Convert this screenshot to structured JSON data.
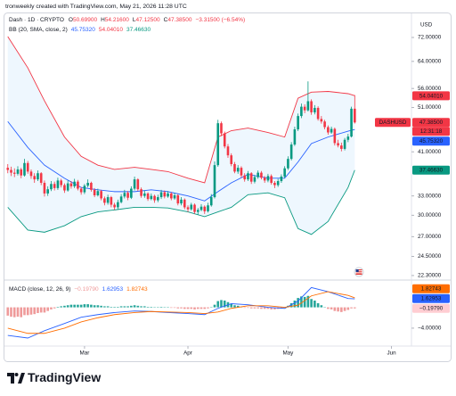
{
  "header": {
    "attribution": "tronweekly created with TradingView.com, May 21, 2026 11:28 UTC"
  },
  "footer": {
    "brand": "TradingView"
  },
  "chart_data": [
    {
      "type": "candlestick",
      "legend": {
        "symbol": "Dash · 1D · CRYPTO",
        "value_color": "#f23645",
        "ohlc": [
          {
            "key": "O",
            "value": "50.69900"
          },
          {
            "key": "H",
            "value": "54.21600"
          },
          {
            "key": "L",
            "value": "47.12500"
          },
          {
            "key": "C",
            "value": "47.38500"
          }
        ],
        "change": "−3.31500 (−6.54%)"
      },
      "indicator_legend": {
        "name": "BB (20, SMA, close, 2)",
        "values": [
          {
            "text": "45.75320",
            "color": "#2962ff"
          },
          {
            "text": "54.04010",
            "color": "#f23645"
          },
          {
            "text": "37.46630",
            "color": "#089981"
          }
        ]
      },
      "currency": "USD",
      "log_scale": true,
      "grid": false,
      "up_color": "#089981",
      "down_color": "#f23645",
      "xlim": [
        -1,
        121
      ],
      "ylim": [
        22,
        80
      ],
      "yticks": [
        {
          "value": 72,
          "label": "72.00000"
        },
        {
          "value": 64,
          "label": "64.00000"
        },
        {
          "value": 56,
          "label": "56.00000"
        },
        {
          "value": 51,
          "label": "51.00000"
        },
        {
          "value": 41,
          "label": "41.00000"
        },
        {
          "value": 33,
          "label": "33.00000"
        },
        {
          "value": 30,
          "label": "30.00000"
        },
        {
          "value": 27,
          "label": "27.00000"
        },
        {
          "value": 24.5,
          "label": "24.50000"
        },
        {
          "value": 22.3,
          "label": "22.30000"
        }
      ],
      "ohlc": [
        [
          37.9,
          38.6,
          36.9,
          37.5
        ],
        [
          37.5,
          38.1,
          36.4,
          37.0
        ],
        [
          37.0,
          37.8,
          36.2,
          36.8
        ],
        [
          36.8,
          38.2,
          36.5,
          37.6
        ],
        [
          37.6,
          37.9,
          36.0,
          36.5
        ],
        [
          36.5,
          39.6,
          36.3,
          38.8
        ],
        [
          38.8,
          39.2,
          36.8,
          37.2
        ],
        [
          37.2,
          37.6,
          35.9,
          36.4
        ],
        [
          36.4,
          36.9,
          35.2,
          35.8
        ],
        [
          35.8,
          37.4,
          35.5,
          36.9
        ],
        [
          36.9,
          37.1,
          34.8,
          35.2
        ],
        [
          35.2,
          35.6,
          32.9,
          33.4
        ],
        [
          33.4,
          34.6,
          33.0,
          34.1
        ],
        [
          34.1,
          35.5,
          33.8,
          35.0
        ],
        [
          35.0,
          35.4,
          33.9,
          34.3
        ],
        [
          34.3,
          36.1,
          34.0,
          35.6
        ],
        [
          35.6,
          35.9,
          34.4,
          34.8
        ],
        [
          34.8,
          35.1,
          33.5,
          33.9
        ],
        [
          33.9,
          35.6,
          33.7,
          35.1
        ],
        [
          35.1,
          35.5,
          34.2,
          34.6
        ],
        [
          34.6,
          35.9,
          34.3,
          35.4
        ],
        [
          35.4,
          35.7,
          33.9,
          34.2
        ],
        [
          34.2,
          34.5,
          33.2,
          33.6
        ],
        [
          33.6,
          35.0,
          33.3,
          34.7
        ],
        [
          34.7,
          35.8,
          34.4,
          35.2
        ],
        [
          35.2,
          35.4,
          33.7,
          34.0
        ],
        [
          34.0,
          34.3,
          32.8,
          33.1
        ],
        [
          33.1,
          34.2,
          32.9,
          33.8
        ],
        [
          33.8,
          34.0,
          32.3,
          32.6
        ],
        [
          32.6,
          32.9,
          31.5,
          31.9
        ],
        [
          31.9,
          33.2,
          31.6,
          32.8
        ],
        [
          32.8,
          33.0,
          31.2,
          31.6
        ],
        [
          31.6,
          31.9,
          30.8,
          31.2
        ],
        [
          31.2,
          32.4,
          30.9,
          32.0
        ],
        [
          32.0,
          33.3,
          31.8,
          32.9
        ],
        [
          32.9,
          34.0,
          32.6,
          33.5
        ],
        [
          33.5,
          33.8,
          32.3,
          32.7
        ],
        [
          32.7,
          34.6,
          32.5,
          34.2
        ],
        [
          34.2,
          36.3,
          33.9,
          35.8
        ],
        [
          35.8,
          36.0,
          33.8,
          34.1
        ],
        [
          34.1,
          34.4,
          32.7,
          33.0
        ],
        [
          33.0,
          33.9,
          32.7,
          33.4
        ],
        [
          33.4,
          33.6,
          32.2,
          32.5
        ],
        [
          32.5,
          33.4,
          32.3,
          33.0
        ],
        [
          33.0,
          33.2,
          31.9,
          32.3
        ],
        [
          32.3,
          33.2,
          32.0,
          32.8
        ],
        [
          32.8,
          34.0,
          32.5,
          33.6
        ],
        [
          33.6,
          33.9,
          32.6,
          32.9
        ],
        [
          32.9,
          33.8,
          32.7,
          33.4
        ],
        [
          33.4,
          33.6,
          32.3,
          32.6
        ],
        [
          32.6,
          33.5,
          32.4,
          33.1
        ],
        [
          33.1,
          33.3,
          31.5,
          31.8
        ],
        [
          31.8,
          32.8,
          31.5,
          32.4
        ],
        [
          32.4,
          32.6,
          30.9,
          31.2
        ],
        [
          31.2,
          31.5,
          30.5,
          30.9
        ],
        [
          30.9,
          31.9,
          30.7,
          31.6
        ],
        [
          31.6,
          31.8,
          30.2,
          30.5
        ],
        [
          30.5,
          31.1,
          30.1,
          30.8
        ],
        [
          30.8,
          31.7,
          30.6,
          31.3
        ],
        [
          31.3,
          31.5,
          30.2,
          30.6
        ],
        [
          30.6,
          31.9,
          30.4,
          31.5
        ],
        [
          31.5,
          33.3,
          31.3,
          32.8
        ],
        [
          32.8,
          39.1,
          32.6,
          38.4
        ],
        [
          38.4,
          48.0,
          38.1,
          47.2
        ],
        [
          47.2,
          47.6,
          44.3,
          44.9
        ],
        [
          44.9,
          45.3,
          41.7,
          42.1
        ],
        [
          42.1,
          42.6,
          39.8,
          40.3
        ],
        [
          40.3,
          40.7,
          38.2,
          38.6
        ],
        [
          38.6,
          39.0,
          36.9,
          37.2
        ],
        [
          37.2,
          38.4,
          36.8,
          37.9
        ],
        [
          37.9,
          38.2,
          36.1,
          36.5
        ],
        [
          36.5,
          36.9,
          35.4,
          35.8
        ],
        [
          35.8,
          37.3,
          35.5,
          36.9
        ],
        [
          36.9,
          37.1,
          35.0,
          35.4
        ],
        [
          35.4,
          36.6,
          35.1,
          36.2
        ],
        [
          36.2,
          37.4,
          35.9,
          37.0
        ],
        [
          37.0,
          37.3,
          35.8,
          36.1
        ],
        [
          36.1,
          36.4,
          35.2,
          35.6
        ],
        [
          35.6,
          36.8,
          35.3,
          36.4
        ],
        [
          36.4,
          36.7,
          34.9,
          35.2
        ],
        [
          35.2,
          35.5,
          34.3,
          34.8
        ],
        [
          34.8,
          35.9,
          34.5,
          35.5
        ],
        [
          35.5,
          36.7,
          35.2,
          36.3
        ],
        [
          36.3,
          38.2,
          36.0,
          37.8
        ],
        [
          37.8,
          40.1,
          37.5,
          39.6
        ],
        [
          39.6,
          43.0,
          39.3,
          42.5
        ],
        [
          42.5,
          46.4,
          42.2,
          45.8
        ],
        [
          45.8,
          49.5,
          45.4,
          48.9
        ],
        [
          48.9,
          52.0,
          48.4,
          51.2
        ],
        [
          51.2,
          51.8,
          49.6,
          50.3
        ],
        [
          50.3,
          58.0,
          50.0,
          52.6
        ],
        [
          52.6,
          53.1,
          49.2,
          49.8
        ],
        [
          49.8,
          51.6,
          49.3,
          50.9
        ],
        [
          50.9,
          51.3,
          47.8,
          48.2
        ],
        [
          48.2,
          48.9,
          47.1,
          47.6
        ],
        [
          47.6,
          48.0,
          45.8,
          46.3
        ],
        [
          46.3,
          46.7,
          44.6,
          45.1
        ],
        [
          45.1,
          46.4,
          44.8,
          45.9
        ],
        [
          45.9,
          46.2,
          42.3,
          42.8
        ],
        [
          42.8,
          43.5,
          41.9,
          42.3
        ],
        [
          42.3,
          42.9,
          41.1,
          41.6
        ],
        [
          41.6,
          43.9,
          41.3,
          43.5
        ],
        [
          43.5,
          44.8,
          43.0,
          44.2
        ],
        [
          44.2,
          51.2,
          44.0,
          50.699
        ],
        [
          50.699,
          54.216,
          47.125,
          47.385
        ]
      ],
      "line_x": [
        0,
        6,
        11,
        17,
        22,
        27,
        32,
        38,
        43,
        48,
        54,
        59,
        63,
        67,
        72,
        78,
        83,
        87,
        91,
        96,
        102,
        104
      ],
      "lines": [
        {
          "color": "#f23645",
          "values": [
            72.3,
            62.0,
            52.7,
            44.1,
            40.1,
            38.4,
            37.6,
            38.0,
            37.6,
            37.2,
            36.0,
            35.2,
            44.1,
            45.5,
            46.1,
            45.1,
            44.1,
            53.4,
            55.0,
            55.2,
            54.6,
            54.0401
          ]
        },
        {
          "color": "#2962ff",
          "values": [
            47.6,
            41.9,
            38.4,
            36.0,
            34.4,
            34.0,
            33.7,
            33.7,
            34.0,
            33.7,
            33.0,
            32.2,
            33.7,
            35.2,
            36.7,
            36.0,
            36.0,
            39.0,
            42.7,
            44.1,
            45.4,
            45.7532
          ]
        },
        {
          "color": "#089981",
          "values": [
            31.2,
            27.9,
            27.6,
            28.5,
            29.8,
            30.5,
            30.8,
            31.2,
            31.2,
            31.1,
            30.5,
            29.8,
            30.5,
            31.2,
            33.2,
            33.5,
            32.7,
            28.1,
            27.3,
            29.1,
            34.4,
            37.4663
          ]
        }
      ],
      "fill_between": [
        0,
        2
      ],
      "fill_color": "#2196f3",
      "badges": [
        {
          "value": 54.0401,
          "label": "54.04010",
          "color": "#f23645"
        },
        {
          "value": 47.385,
          "label": "47.38500",
          "color": "#f23645",
          "symbol": "DASHUSD",
          "countdown": "12:31:18"
        },
        {
          "value": 45.7532,
          "label": "45.75320",
          "color": "#2962ff"
        },
        {
          "value": 37.4663,
          "label": "37.46630",
          "color": "#089981"
        }
      ]
    },
    {
      "type": "macd",
      "legend": {
        "name": "MACD (close, 12, 26, 9)",
        "values": [
          {
            "text": "−0.19790",
            "color": "#ef9a9a"
          },
          {
            "text": "1.62953",
            "color": "#2962ff"
          },
          {
            "text": "1.82743",
            "color": "#ff6d00"
          }
        ]
      },
      "log_scale": false,
      "xlim": [
        -1,
        121
      ],
      "xticks": [
        {
          "value": 23,
          "label": "Mar"
        },
        {
          "value": 54,
          "label": "Apr"
        },
        {
          "value": 84,
          "label": "May"
        },
        {
          "value": 115,
          "label": "Jun"
        }
      ],
      "ylim": [
        -7.1,
        4.9
      ],
      "yticks": [
        {
          "value": -4,
          "label": "−4.00000"
        }
      ],
      "histogram": [
        -1.6,
        -1.8,
        -1.9,
        -1.8,
        -1.9,
        -1.5,
        -1.5,
        -1.4,
        -1.3,
        -1.1,
        -1.0,
        -1.0,
        -0.7,
        -0.4,
        -0.2,
        0.1,
        0.2,
        0.3,
        0.4,
        0.5,
        0.5,
        0.5,
        0.5,
        0.6,
        0.6,
        0.5,
        0.4,
        0.4,
        0.3,
        0.2,
        0.2,
        0.1,
        0.1,
        0.1,
        0.2,
        0.2,
        0.2,
        0.3,
        0.4,
        0.3,
        0.2,
        0.2,
        0.1,
        0.1,
        0.0,
        0.0,
        0.1,
        0.0,
        0.0,
        -0.1,
        -0.1,
        -0.2,
        -0.2,
        -0.3,
        -0.3,
        -0.3,
        -0.4,
        -0.3,
        -0.3,
        -0.3,
        -0.2,
        0.0,
        0.5,
        1.2,
        1.4,
        1.3,
        1.0,
        0.7,
        0.4,
        0.3,
        0.1,
        -0.1,
        -0.1,
        -0.2,
        -0.2,
        -0.2,
        -0.3,
        -0.3,
        -0.3,
        -0.4,
        -0.4,
        -0.3,
        -0.2,
        0.0,
        0.3,
        0.8,
        1.3,
        1.8,
        2.1,
        2.0,
        2.2,
        1.6,
        1.3,
        0.8,
        0.4,
        0.0,
        -0.3,
        -0.4,
        -0.7,
        -0.8,
        -0.9,
        -0.7,
        -0.5,
        -0.2,
        -0.1979
      ],
      "hist_colors": {
        "positive": "#26a69a",
        "negative": "#ef9a9a"
      },
      "line_x": [
        0,
        6,
        11,
        17,
        22,
        27,
        32,
        38,
        43,
        48,
        54,
        59,
        63,
        67,
        72,
        78,
        83,
        87,
        91,
        96,
        102,
        104
      ],
      "lines": [
        {
          "color": "#2962ff",
          "values": [
            -5.4,
            -5.9,
            -4.5,
            -3.1,
            -1.9,
            -1.4,
            -1.0,
            -0.7,
            -0.8,
            -1.0,
            -1.2,
            -1.4,
            -0.2,
            0.7,
            0.5,
            0.0,
            -0.2,
            1.2,
            3.8,
            3.0,
            1.7,
            1.62953
          ]
        },
        {
          "color": "#ff6d00",
          "values": [
            -4.0,
            -5.0,
            -5.0,
            -4.0,
            -2.8,
            -2.0,
            -1.4,
            -1.0,
            -0.8,
            -0.9,
            -1.0,
            -1.2,
            -0.9,
            -0.2,
            0.3,
            0.3,
            0.0,
            0.4,
            2.2,
            3.0,
            2.3,
            1.82743
          ]
        }
      ],
      "badges": [
        {
          "value": 1.82743,
          "label": "1.82743",
          "color": "#ff6d00"
        },
        {
          "value": 1.62953,
          "label": "1.62953",
          "color": "#2962ff"
        },
        {
          "value": -0.1979,
          "label": "−0.19790",
          "color": "#ffcdd2"
        }
      ]
    }
  ]
}
